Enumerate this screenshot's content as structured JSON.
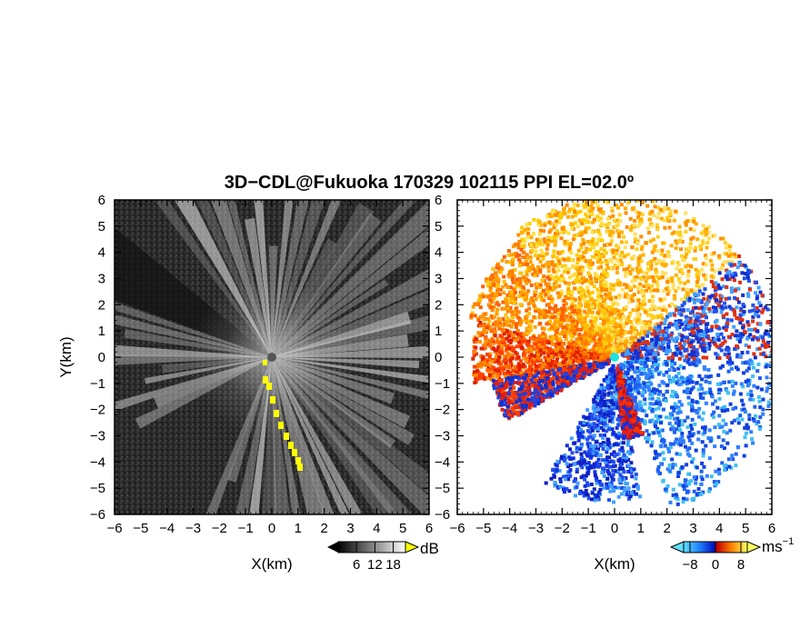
{
  "title": "3D−CDL@Fukuoka 170329 102115 PPI EL=02.0º",
  "chart_data": [
    {
      "type": "heatmap",
      "panel": "left",
      "quantity": "SNR",
      "xlabel": "X(km)",
      "ylabel": "Y(km)",
      "xlim": [
        -6,
        6
      ],
      "ylim": [
        -6,
        6
      ],
      "xticks": [
        "−6",
        "−5",
        "−4",
        "−3",
        "−2",
        "−1",
        "0",
        "1",
        "2",
        "3",
        "4",
        "5",
        "6"
      ],
      "yticks": [
        "6",
        "5",
        "4",
        "3",
        "2",
        "1",
        "0",
        "−1",
        "−2",
        "−3",
        "−4",
        "−5",
        "−6"
      ],
      "colorbar": {
        "unit": "dB",
        "ticks": [
          "6",
          "12",
          "18"
        ],
        "range": [
          0,
          22
        ]
      },
      "colors": {
        "background": "#2e2e2e",
        "highlight": "#ffff00"
      }
    },
    {
      "type": "heatmap",
      "panel": "right",
      "quantity": "radial velocity",
      "xlabel": "X(km)",
      "xlim": [
        -6,
        6
      ],
      "ylim": [
        -6,
        6
      ],
      "xticks": [
        "−6",
        "−5",
        "−4",
        "−3",
        "−2",
        "−1",
        "0",
        "1",
        "2",
        "3",
        "4",
        "5",
        "6"
      ],
      "yticks": [
        "6",
        "5",
        "4",
        "3",
        "2",
        "1",
        "0",
        "−1",
        "−2",
        "−3",
        "−4",
        "−5",
        "−6"
      ],
      "colorbar": {
        "unit": "ms",
        "unit_sup": "−1",
        "ticks": [
          "−8",
          "0",
          "8"
        ],
        "range": [
          -10,
          10
        ]
      },
      "colors": {
        "negative": "#1040e0",
        "negative_light": "#40c8f0",
        "positive": "#e03010",
        "positive_light": "#ffe040"
      }
    }
  ]
}
